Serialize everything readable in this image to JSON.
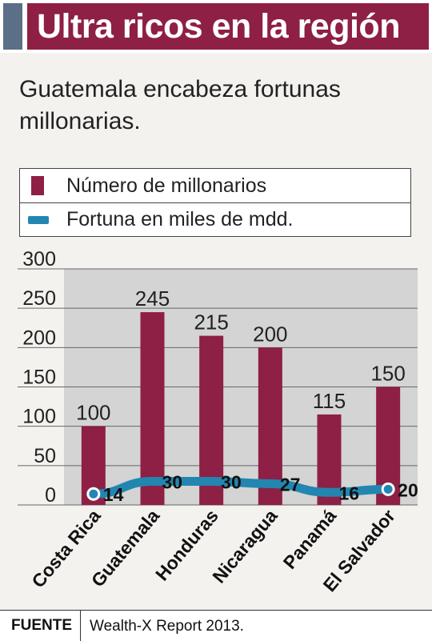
{
  "header": {
    "title": "Ultra ricos en la región"
  },
  "subtitle": "Guatemala encabeza fortunas millonarias.",
  "legend": {
    "bars_label": "Número de millonarios",
    "line_label": "Fortuna en miles de mdd."
  },
  "footer": {
    "label": "FUENTE",
    "source": "Wealth-X Report 2013."
  },
  "colors": {
    "bar": "#8e1f45",
    "line": "#2286b0",
    "header": "#8e1f45",
    "accent": "#5b6f86",
    "plot_bg": "#d4d4d4"
  },
  "chart_data": {
    "type": "bar",
    "categories": [
      "Costa Rica",
      "Guatemala",
      "Honduras",
      "Nicaragua",
      "Panamá",
      "El Salvador"
    ],
    "series": [
      {
        "name": "Número de millonarios",
        "type": "bar",
        "values": [
          100,
          245,
          215,
          200,
          115,
          150
        ]
      },
      {
        "name": "Fortuna en miles de mdd.",
        "type": "line",
        "values": [
          14,
          30,
          30,
          27,
          16,
          20
        ]
      }
    ],
    "ylim": [
      0,
      300
    ],
    "yticks": [
      0,
      50,
      100,
      150,
      200,
      250,
      300
    ],
    "grid": true,
    "legend_position": "top"
  }
}
